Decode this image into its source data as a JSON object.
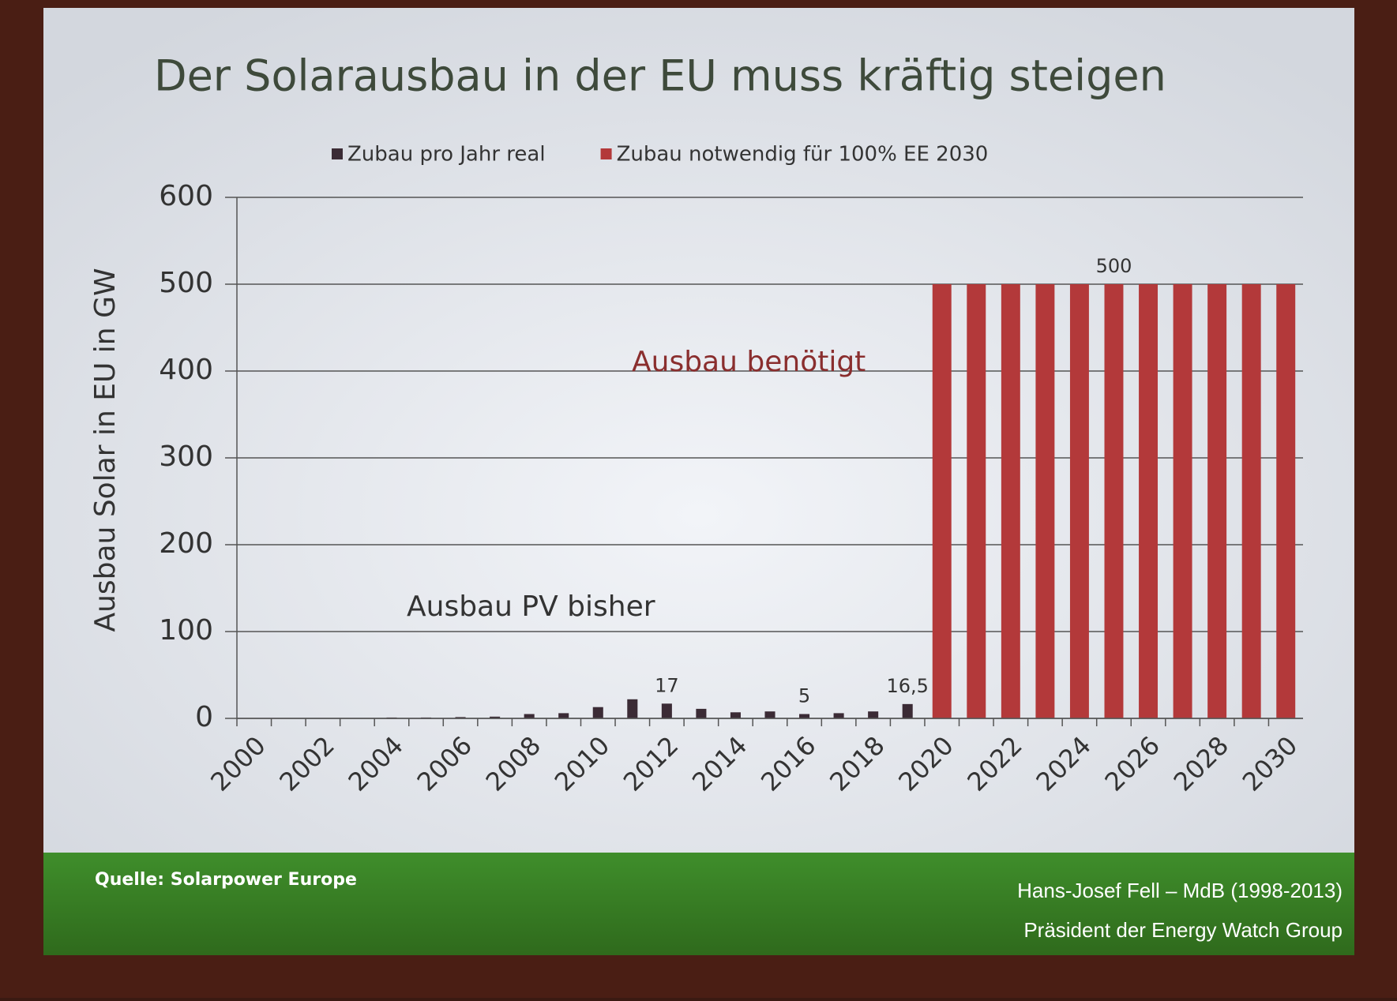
{
  "chart_data": {
    "type": "bar",
    "title": "Der Solarausbau in der EU muss kräftig steigen",
    "ylabel": "Ausbau Solar in EU in GW",
    "categories": [
      "2000",
      null,
      "2002",
      null,
      "2004",
      null,
      "2006",
      null,
      "2008",
      null,
      "2010",
      null,
      "2012",
      null,
      "2014",
      null,
      "2016",
      null,
      "2018",
      null,
      "2020",
      null,
      "2022",
      null,
      "2024",
      null,
      "2026",
      null,
      "2028",
      null,
      "2030"
    ],
    "series": [
      {
        "name": "Zubau pro Jahr real",
        "color": "#3b2b35",
        "values": [
          0.1,
          0.2,
          0.2,
          0.3,
          1,
          1,
          1.5,
          2,
          5,
          6,
          13,
          22,
          17,
          11,
          7,
          8,
          5,
          6,
          8,
          16.5,
          null,
          null,
          null,
          null,
          null,
          null,
          null,
          null,
          null,
          null,
          null
        ],
        "value_labels": [
          null,
          null,
          null,
          null,
          null,
          null,
          null,
          null,
          null,
          null,
          null,
          null,
          "17",
          null,
          null,
          null,
          "5",
          null,
          null,
          "16,5",
          null,
          null,
          null,
          null,
          null,
          null,
          null,
          null,
          null,
          null,
          null
        ]
      },
      {
        "name": "Zubau notwendig für 100% EE 2030",
        "color": "#b3393a",
        "values": [
          null,
          null,
          null,
          null,
          null,
          null,
          null,
          null,
          null,
          null,
          null,
          null,
          null,
          null,
          null,
          null,
          null,
          null,
          null,
          null,
          500,
          500,
          500,
          500,
          500,
          500,
          500,
          500,
          500,
          500,
          500
        ],
        "value_labels": [
          null,
          null,
          null,
          null,
          null,
          null,
          null,
          null,
          null,
          null,
          null,
          null,
          null,
          null,
          null,
          null,
          null,
          null,
          null,
          null,
          null,
          null,
          null,
          null,
          null,
          "500",
          null,
          null,
          null,
          null,
          null
        ]
      }
    ],
    "ylim": [
      0,
      600
    ],
    "yticks": [
      0,
      100,
      200,
      300,
      400,
      500,
      600
    ],
    "grid": true,
    "legend": "top",
    "annotations": [
      {
        "text": "Ausbau benötigt",
        "color": "#8a2e2e"
      },
      {
        "text": "Ausbau PV bisher",
        "color": "#333333"
      }
    ]
  },
  "footer": {
    "source": "Quelle: Solarpower Europe",
    "author": "Hans-Josef Fell – MdB (1998-2013)",
    "role": "Präsident der Energy Watch Group"
  }
}
